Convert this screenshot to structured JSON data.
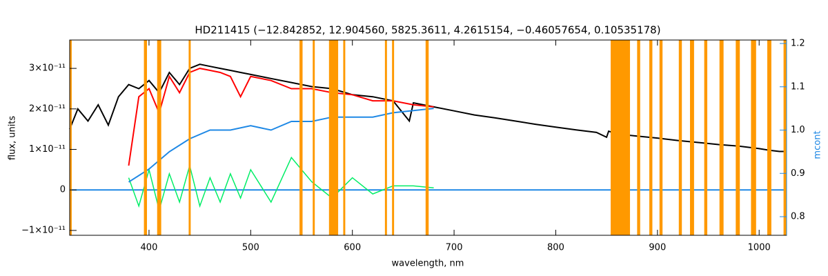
{
  "chart_data": {
    "type": "line",
    "title": "HD211415   (−12.842852, 12.904560, 5825.3611, 4.2615154, −0.46057654, 0.10535178)",
    "x_label": "wavelength, nm",
    "y_label": "flux, units",
    "y2_label": "mcont",
    "xlim": [
      322,
      1027
    ],
    "xticks": [
      400,
      500,
      600,
      700,
      800,
      900,
      1000
    ],
    "ylim": [
      -1.12e-11,
      3.7e-11
    ],
    "yticks": [
      {
        "value": -1e-11,
        "label": "−1×10⁻¹¹"
      },
      0,
      {
        "value": 1e-11,
        "label": "1×10⁻¹¹"
      },
      {
        "value": 2e-11,
        "label": "2×10⁻¹¹"
      },
      {
        "value": 3e-11,
        "label": "3×10⁻¹¹"
      }
    ],
    "y2lim": [
      0.757,
      1.208
    ],
    "y2ticks": [
      0.8,
      0.9,
      {
        "value": 1,
        "label": "1.0"
      },
      1.1,
      1.2
    ],
    "y2_color": "#1e88e5",
    "zero_line_color": "#1e88e5",
    "mask_color": "#ff9900",
    "series": [
      {
        "color": "#000000",
        "width": 2,
        "x": [
          322,
          330,
          340,
          350,
          360,
          370,
          380,
          390,
          400,
          410,
          420,
          430,
          440,
          450,
          460,
          470,
          480,
          490,
          500,
          520,
          540,
          560,
          580,
          600,
          620,
          640,
          656,
          660,
          680,
          700,
          720,
          740,
          760,
          780,
          800,
          820,
          840,
          850,
          852,
          860,
          880,
          900,
          920,
          940,
          960,
          980,
          1000,
          1010,
          1020,
          1027
        ],
        "values": [
          1.5e-11,
          2e-11,
          1.7e-11,
          2.1e-11,
          1.6e-11,
          2.3e-11,
          2.6e-11,
          2.5e-11,
          2.7e-11,
          2.4e-11,
          2.9e-11,
          2.6e-11,
          3e-11,
          3.1e-11,
          3.05e-11,
          3e-11,
          2.95e-11,
          2.9e-11,
          2.85e-11,
          2.75e-11,
          2.65e-11,
          2.55e-11,
          2.5e-11,
          2.35e-11,
          2.3e-11,
          2.2e-11,
          1.7e-11,
          2.15e-11,
          2.05e-11,
          1.95e-11,
          1.85e-11,
          1.78e-11,
          1.7e-11,
          1.62e-11,
          1.55e-11,
          1.48e-11,
          1.42e-11,
          1.3e-11,
          1.45e-11,
          1.38e-11,
          1.33e-11,
          1.28e-11,
          1.22e-11,
          1.17e-11,
          1.12e-11,
          1.08e-11,
          1.02e-11,
          9.8e-12,
          9.5e-12,
          9.5e-12
        ]
      },
      {
        "color": "#ff0000",
        "width": 2,
        "x": [
          380,
          390,
          400,
          410,
          420,
          430,
          440,
          450,
          460,
          470,
          480,
          490,
          500,
          520,
          540,
          560,
          580,
          600,
          620,
          640,
          660,
          680
        ],
        "values": [
          6e-12,
          2.3e-11,
          2.5e-11,
          1.9e-11,
          2.8e-11,
          2.4e-11,
          2.9e-11,
          3e-11,
          2.95e-11,
          2.9e-11,
          2.8e-11,
          2.3e-11,
          2.8e-11,
          2.7e-11,
          2.5e-11,
          2.5e-11,
          2.4e-11,
          2.35e-11,
          2.2e-11,
          2.2e-11,
          2.1e-11,
          2.05e-11
        ]
      },
      {
        "color": "#00ee66",
        "width": 1.5,
        "x": [
          380,
          390,
          400,
          410,
          420,
          430,
          440,
          450,
          460,
          470,
          480,
          490,
          500,
          520,
          540,
          560,
          580,
          600,
          620,
          640,
          660,
          680
        ],
        "values": [
          3e-12,
          -4e-12,
          5e-12,
          -5e-12,
          4e-12,
          -3e-12,
          6e-12,
          -4e-12,
          3e-12,
          -3e-12,
          4e-12,
          -2e-12,
          5e-12,
          -3e-12,
          8e-12,
          2e-12,
          -2e-12,
          3e-12,
          -1e-12,
          1e-12,
          1e-12,
          5e-13
        ]
      },
      {
        "color": "#1e88e5",
        "width": 2,
        "axis": "y2",
        "x": [
          380,
          400,
          420,
          440,
          460,
          480,
          500,
          520,
          540,
          560,
          580,
          600,
          620,
          640,
          660,
          680
        ],
        "values": [
          0.88,
          0.91,
          0.95,
          0.98,
          1.0,
          1.0,
          1.01,
          1.0,
          1.02,
          1.02,
          1.03,
          1.03,
          1.03,
          1.04,
          1.045,
          1.05
        ]
      }
    ],
    "mask_regions": [
      [
        322,
        324
      ],
      [
        395,
        398
      ],
      [
        408,
        412
      ],
      [
        439,
        441
      ],
      [
        548,
        551
      ],
      [
        561,
        563
      ],
      [
        577,
        586
      ],
      [
        591,
        593
      ],
      [
        632,
        634
      ],
      [
        639,
        641
      ],
      [
        672,
        675
      ],
      [
        854,
        873
      ],
      [
        880,
        883
      ],
      [
        892,
        895
      ],
      [
        902,
        905
      ],
      [
        921,
        924
      ],
      [
        932,
        936
      ],
      [
        946,
        949
      ],
      [
        961,
        965
      ],
      [
        977,
        981
      ],
      [
        992,
        997
      ],
      [
        1008,
        1012
      ],
      [
        1024,
        1027
      ]
    ]
  }
}
